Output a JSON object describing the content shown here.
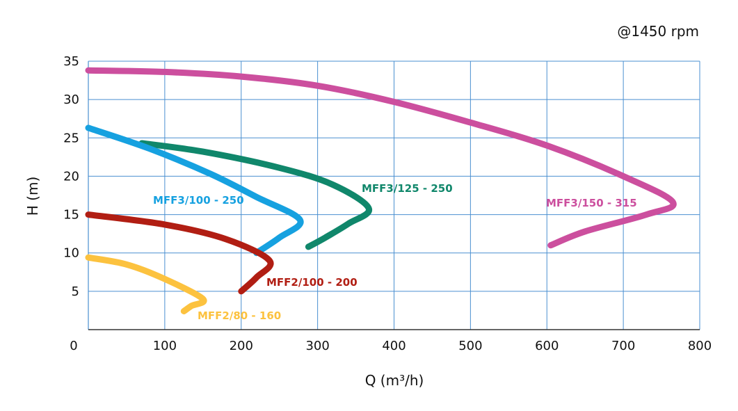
{
  "chart_data": {
    "type": "line",
    "annotation": "@1450 rpm",
    "xlabel": "Q (m³/h)",
    "ylabel": "H (m)",
    "xlim": [
      0,
      800
    ],
    "ylim": [
      0,
      35
    ],
    "x_ticks": [
      "0",
      "100",
      "200",
      "300",
      "400",
      "500",
      "600",
      "700",
      "800"
    ],
    "y_ticks": [
      "5",
      "10",
      "15",
      "20",
      "25",
      "30",
      "35"
    ],
    "grid": true,
    "colors": {
      "grid": "#4a8fd0",
      "axis": "#333333"
    },
    "series": [
      {
        "name": "MFF3/150 - 315",
        "color": "#cc4f9e",
        "points": [
          [
            0,
            33.8
          ],
          [
            100,
            33.6
          ],
          [
            200,
            33.0
          ],
          [
            300,
            31.8
          ],
          [
            400,
            29.7
          ],
          [
            500,
            27.0
          ],
          [
            600,
            24.0
          ],
          [
            700,
            20.0
          ],
          [
            765,
            16.6
          ],
          [
            730,
            15.0
          ],
          [
            650,
            12.8
          ],
          [
            605,
            11.0
          ]
        ]
      },
      {
        "name": "MFF3/125 - 250",
        "color": "#10876b",
        "points": [
          [
            70,
            24.3
          ],
          [
            150,
            23.2
          ],
          [
            250,
            21.1
          ],
          [
            320,
            18.9
          ],
          [
            367,
            15.8
          ],
          [
            340,
            13.8
          ],
          [
            310,
            12.0
          ],
          [
            288,
            10.8
          ]
        ]
      },
      {
        "name": "MFF3/100 - 250",
        "color": "#16a1e0",
        "points": [
          [
            0,
            26.3
          ],
          [
            80,
            23.6
          ],
          [
            160,
            20.3
          ],
          [
            220,
            17.3
          ],
          [
            277,
            14.3
          ],
          [
            250,
            12.0
          ],
          [
            220,
            10.0
          ]
        ]
      },
      {
        "name": "MFF2/100 - 200",
        "color": "#b11e13",
        "points": [
          [
            0,
            15.0
          ],
          [
            100,
            13.7
          ],
          [
            180,
            11.8
          ],
          [
            237,
            9.0
          ],
          [
            220,
            6.8
          ],
          [
            200,
            5.0
          ]
        ]
      },
      {
        "name": "MFF2/80 - 160",
        "color": "#fcc23f",
        "points": [
          [
            0,
            9.4
          ],
          [
            50,
            8.5
          ],
          [
            100,
            6.6
          ],
          [
            150,
            4.0
          ],
          [
            135,
            3.1
          ],
          [
            125,
            2.4
          ]
        ]
      }
    ]
  }
}
